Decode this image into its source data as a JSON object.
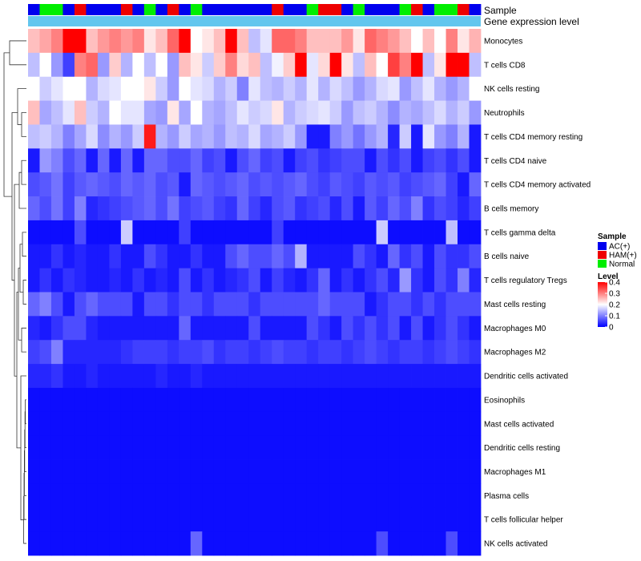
{
  "chart_data": {
    "type": "heatmap",
    "title": "",
    "annotations": {
      "sample_label": "Sample",
      "expression_label": "Gene expression level",
      "expression_color": "#63c6ee",
      "samples": [
        "AC(+)",
        "Normal",
        "Normal",
        "AC(+)",
        "HAM(+)",
        "AC(+)",
        "AC(+)",
        "AC(+)",
        "HAM(+)",
        "AC(+)",
        "Normal",
        "AC(+)",
        "HAM(+)",
        "AC(+)",
        "Normal",
        "AC(+)",
        "AC(+)",
        "AC(+)",
        "AC(+)",
        "AC(+)",
        "AC(+)",
        "HAM(+)",
        "AC(+)",
        "AC(+)",
        "Normal",
        "HAM(+)",
        "HAM(+)",
        "AC(+)",
        "Normal",
        "AC(+)",
        "AC(+)",
        "AC(+)",
        "Normal",
        "HAM(+)",
        "AC(+)",
        "Normal",
        "Normal",
        "HAM(+)",
        "AC(+)"
      ]
    },
    "rows": [
      "Monocytes",
      "T cells CD8",
      "NK cells resting",
      "Neutrophils",
      "T cells CD4 memory resting",
      "T cells CD4 naive",
      "T cells CD4 memory activated",
      "B cells memory",
      "T cells gamma delta",
      "B cells naive",
      "T cells regulatory  Tregs",
      "Mast cells resting",
      "Macrophages M0",
      "Macrophages M2",
      "Dendritic cells activated",
      "Eosinophils",
      "Mast cells activated",
      "Dendritic cells resting",
      "Macrophages M1",
      "Plasma cells",
      "T cells follicular helper",
      "NK cells activated"
    ],
    "values": [
      [
        0.25,
        0.27,
        0.3,
        0.4,
        0.4,
        0.25,
        0.28,
        0.3,
        0.28,
        0.3,
        0.22,
        0.25,
        0.32,
        0.4,
        0.2,
        0.22,
        0.25,
        0.4,
        0.25,
        0.15,
        0.18,
        0.32,
        0.32,
        0.3,
        0.25,
        0.25,
        0.25,
        0.28,
        0.22,
        0.32,
        0.3,
        0.28,
        0.25,
        0.2,
        0.25,
        0.2,
        0.3,
        0.22,
        0.26
      ],
      [
        0.15,
        0.2,
        0.12,
        0.05,
        0.3,
        0.32,
        0.12,
        0.24,
        0.14,
        0.2,
        0.15,
        0.2,
        0.12,
        0.25,
        0.22,
        0.16,
        0.24,
        0.3,
        0.23,
        0.25,
        0.15,
        0.19,
        0.24,
        0.4,
        0.18,
        0.23,
        0.4,
        0.22,
        0.15,
        0.25,
        0.2,
        0.35,
        0.3,
        0.4,
        0.15,
        0.22,
        0.4,
        0.4,
        0.15
      ],
      [
        0.2,
        0.16,
        0.18,
        0.2,
        0.2,
        0.14,
        0.17,
        0.18,
        0.2,
        0.2,
        0.22,
        0.16,
        0.12,
        0.2,
        0.18,
        0.17,
        0.14,
        0.16,
        0.1,
        0.18,
        0.15,
        0.14,
        0.16,
        0.14,
        0.18,
        0.14,
        0.17,
        0.15,
        0.12,
        0.14,
        0.17,
        0.18,
        0.12,
        0.15,
        0.18,
        0.14,
        0.12,
        0.14,
        0.2
      ],
      [
        0.25,
        0.13,
        0.15,
        0.18,
        0.25,
        0.16,
        0.14,
        0.2,
        0.18,
        0.18,
        0.13,
        0.12,
        0.22,
        0.13,
        0.2,
        0.14,
        0.13,
        0.15,
        0.18,
        0.16,
        0.17,
        0.22,
        0.14,
        0.16,
        0.17,
        0.18,
        0.16,
        0.12,
        0.15,
        0.16,
        0.14,
        0.11,
        0.14,
        0.13,
        0.15,
        0.17,
        0.14,
        0.16,
        0.12
      ],
      [
        0.15,
        0.16,
        0.14,
        0.1,
        0.13,
        0.17,
        0.11,
        0.14,
        0.12,
        0.16,
        0.38,
        0.14,
        0.12,
        0.16,
        0.13,
        0.14,
        0.12,
        0.15,
        0.14,
        0.17,
        0.13,
        0.14,
        0.16,
        0.12,
        0.02,
        0.02,
        0.1,
        0.12,
        0.09,
        0.12,
        0.14,
        0.03,
        0.16,
        0.02,
        0.18,
        0.12,
        0.1,
        0.14,
        0.02
      ],
      [
        0.02,
        0.12,
        0.1,
        0.06,
        0.08,
        0.02,
        0.08,
        0.02,
        0.08,
        0.02,
        0.08,
        0.08,
        0.06,
        0.06,
        0.08,
        0.05,
        0.06,
        0.02,
        0.06,
        0.08,
        0.05,
        0.06,
        0.02,
        0.05,
        0.06,
        0.04,
        0.05,
        0.06,
        0.06,
        0.02,
        0.06,
        0.04,
        0.06,
        0.02,
        0.05,
        0.06,
        0.04,
        0.06,
        0.02
      ],
      [
        0.06,
        0.07,
        0.09,
        0.05,
        0.07,
        0.08,
        0.07,
        0.06,
        0.08,
        0.07,
        0.08,
        0.06,
        0.07,
        0.02,
        0.08,
        0.07,
        0.06,
        0.07,
        0.08,
        0.06,
        0.07,
        0.06,
        0.07,
        0.08,
        0.06,
        0.05,
        0.07,
        0.06,
        0.05,
        0.07,
        0.06,
        0.07,
        0.05,
        0.06,
        0.07,
        0.08,
        0.05,
        0.02,
        0.08
      ],
      [
        0.08,
        0.06,
        0.09,
        0.05,
        0.1,
        0.03,
        0.04,
        0.05,
        0.06,
        0.07,
        0.08,
        0.06,
        0.09,
        0.05,
        0.06,
        0.07,
        0.05,
        0.04,
        0.08,
        0.05,
        0.03,
        0.06,
        0.07,
        0.04,
        0.05,
        0.06,
        0.03,
        0.06,
        0.02,
        0.07,
        0.05,
        0.08,
        0.06,
        0.1,
        0.04,
        0.06,
        0.05,
        0.03,
        0.05
      ],
      [
        0.01,
        0.01,
        0.01,
        0.01,
        0.06,
        0.01,
        0.01,
        0.01,
        0.16,
        0.01,
        0.01,
        0.01,
        0.01,
        0.05,
        0.01,
        0.01,
        0.01,
        0.01,
        0.01,
        0.01,
        0.01,
        0.05,
        0.01,
        0.01,
        0.01,
        0.01,
        0.01,
        0.01,
        0.01,
        0.01,
        0.16,
        0.01,
        0.01,
        0.01,
        0.01,
        0.01,
        0.15,
        0.01,
        0.01
      ],
      [
        0.02,
        0.02,
        0.04,
        0.02,
        0.03,
        0.02,
        0.02,
        0.04,
        0.02,
        0.02,
        0.06,
        0.04,
        0.02,
        0.02,
        0.04,
        0.02,
        0.02,
        0.06,
        0.08,
        0.06,
        0.06,
        0.08,
        0.06,
        0.14,
        0.02,
        0.02,
        0.02,
        0.02,
        0.06,
        0.04,
        0.02,
        0.08,
        0.04,
        0.06,
        0.02,
        0.06,
        0.04,
        0.04,
        0.06
      ],
      [
        0.02,
        0.04,
        0.02,
        0.04,
        0.03,
        0.02,
        0.02,
        0.03,
        0.02,
        0.04,
        0.02,
        0.03,
        0.02,
        0.06,
        0.02,
        0.04,
        0.02,
        0.03,
        0.04,
        0.06,
        0.02,
        0.05,
        0.03,
        0.02,
        0.04,
        0.08,
        0.02,
        0.04,
        0.02,
        0.04,
        0.06,
        0.03,
        0.12,
        0.04,
        0.02,
        0.06,
        0.04,
        0.1,
        0.03
      ],
      [
        0.08,
        0.1,
        0.06,
        0.02,
        0.06,
        0.08,
        0.06,
        0.06,
        0.06,
        0.02,
        0.06,
        0.06,
        0.04,
        0.06,
        0.06,
        0.04,
        0.06,
        0.06,
        0.06,
        0.04,
        0.06,
        0.06,
        0.06,
        0.06,
        0.06,
        0.08,
        0.06,
        0.06,
        0.06,
        0.02,
        0.04,
        0.06,
        0.06,
        0.04,
        0.06,
        0.04,
        0.06,
        0.06,
        0.06
      ],
      [
        0.03,
        0.02,
        0.04,
        0.06,
        0.06,
        0.03,
        0.02,
        0.02,
        0.02,
        0.02,
        0.02,
        0.02,
        0.02,
        0.08,
        0.02,
        0.02,
        0.02,
        0.02,
        0.02,
        0.06,
        0.02,
        0.02,
        0.02,
        0.02,
        0.06,
        0.04,
        0.02,
        0.06,
        0.04,
        0.06,
        0.04,
        0.06,
        0.02,
        0.06,
        0.02,
        0.04,
        0.06,
        0.04,
        0.02
      ],
      [
        0.05,
        0.06,
        0.1,
        0.03,
        0.03,
        0.03,
        0.03,
        0.03,
        0.04,
        0.05,
        0.05,
        0.05,
        0.04,
        0.05,
        0.05,
        0.06,
        0.04,
        0.05,
        0.05,
        0.04,
        0.05,
        0.06,
        0.05,
        0.05,
        0.04,
        0.05,
        0.05,
        0.04,
        0.05,
        0.06,
        0.05,
        0.04,
        0.05,
        0.05,
        0.04,
        0.05,
        0.06,
        0.05,
        0.04
      ],
      [
        0.03,
        0.03,
        0.04,
        0.02,
        0.02,
        0.03,
        0.02,
        0.02,
        0.02,
        0.02,
        0.02,
        0.03,
        0.02,
        0.02,
        0.03,
        0.02,
        0.02,
        0.02,
        0.02,
        0.02,
        0.02,
        0.02,
        0.02,
        0.02,
        0.02,
        0.02,
        0.02,
        0.02,
        0.02,
        0.02,
        0.02,
        0.02,
        0.02,
        0.02,
        0.02,
        0.02,
        0.02,
        0.02,
        0.02
      ],
      [
        0.01,
        0.01,
        0.01,
        0.01,
        0.01,
        0.01,
        0.01,
        0.01,
        0.01,
        0.01,
        0.01,
        0.01,
        0.01,
        0.01,
        0.01,
        0.01,
        0.01,
        0.01,
        0.01,
        0.01,
        0.01,
        0.01,
        0.01,
        0.01,
        0.01,
        0.01,
        0.01,
        0.01,
        0.01,
        0.01,
        0.01,
        0.01,
        0.01,
        0.01,
        0.01,
        0.01,
        0.01,
        0.01,
        0.01
      ],
      [
        0.01,
        0.01,
        0.01,
        0.01,
        0.01,
        0.01,
        0.01,
        0.01,
        0.01,
        0.01,
        0.01,
        0.01,
        0.01,
        0.01,
        0.01,
        0.01,
        0.01,
        0.01,
        0.01,
        0.01,
        0.01,
        0.01,
        0.01,
        0.01,
        0.01,
        0.01,
        0.01,
        0.01,
        0.01,
        0.01,
        0.01,
        0.01,
        0.01,
        0.01,
        0.01,
        0.01,
        0.01,
        0.01,
        0.01
      ],
      [
        0.01,
        0.01,
        0.01,
        0.01,
        0.01,
        0.01,
        0.01,
        0.01,
        0.01,
        0.01,
        0.01,
        0.01,
        0.01,
        0.01,
        0.01,
        0.01,
        0.01,
        0.01,
        0.01,
        0.01,
        0.01,
        0.01,
        0.01,
        0.01,
        0.01,
        0.01,
        0.01,
        0.01,
        0.01,
        0.01,
        0.01,
        0.01,
        0.01,
        0.01,
        0.01,
        0.01,
        0.01,
        0.01,
        0.01
      ],
      [
        0.01,
        0.01,
        0.01,
        0.01,
        0.01,
        0.01,
        0.01,
        0.01,
        0.01,
        0.01,
        0.01,
        0.01,
        0.01,
        0.01,
        0.01,
        0.01,
        0.01,
        0.01,
        0.01,
        0.01,
        0.01,
        0.01,
        0.01,
        0.01,
        0.01,
        0.01,
        0.01,
        0.01,
        0.01,
        0.01,
        0.01,
        0.01,
        0.01,
        0.01,
        0.01,
        0.01,
        0.01,
        0.01,
        0.01
      ],
      [
        0.01,
        0.01,
        0.01,
        0.01,
        0.01,
        0.01,
        0.01,
        0.01,
        0.01,
        0.01,
        0.01,
        0.01,
        0.01,
        0.01,
        0.01,
        0.01,
        0.01,
        0.01,
        0.01,
        0.01,
        0.01,
        0.01,
        0.01,
        0.01,
        0.01,
        0.01,
        0.01,
        0.01,
        0.01,
        0.01,
        0.01,
        0.01,
        0.01,
        0.01,
        0.01,
        0.01,
        0.01,
        0.01,
        0.01
      ],
      [
        0.01,
        0.01,
        0.01,
        0.01,
        0.01,
        0.01,
        0.01,
        0.01,
        0.01,
        0.01,
        0.01,
        0.01,
        0.01,
        0.01,
        0.01,
        0.01,
        0.01,
        0.01,
        0.01,
        0.01,
        0.01,
        0.01,
        0.01,
        0.01,
        0.01,
        0.01,
        0.01,
        0.01,
        0.01,
        0.01,
        0.01,
        0.01,
        0.01,
        0.01,
        0.01,
        0.01,
        0.01,
        0.01,
        0.01
      ],
      [
        0.01,
        0.01,
        0.01,
        0.01,
        0.01,
        0.01,
        0.01,
        0.01,
        0.01,
        0.01,
        0.01,
        0.01,
        0.01,
        0.01,
        0.08,
        0.01,
        0.01,
        0.01,
        0.01,
        0.01,
        0.01,
        0.01,
        0.01,
        0.01,
        0.01,
        0.01,
        0.01,
        0.01,
        0.01,
        0.01,
        0.06,
        0.01,
        0.01,
        0.01,
        0.01,
        0.01,
        0.06,
        0.01,
        0.01
      ]
    ],
    "color_scale": {
      "min": 0,
      "max": 0.4,
      "low_color": "#0000ff",
      "mid_color": "#ffffff",
      "high_color": "#ff0000",
      "mid_value": 0.2
    },
    "legend": {
      "sample_title": "Sample",
      "sample_items": [
        {
          "label": "AC(+)",
          "color": "#0000ee"
        },
        {
          "label": "HAM(+)",
          "color": "#ee0000"
        },
        {
          "label": "Normal",
          "color": "#00ee00"
        }
      ],
      "level_title": "Level",
      "level_ticks": [
        "0.4",
        "0.3",
        "0.2",
        "0.1",
        "0"
      ],
      "level_tick_values": [
        0.4,
        0.3,
        0.2,
        0.1,
        0
      ]
    }
  }
}
